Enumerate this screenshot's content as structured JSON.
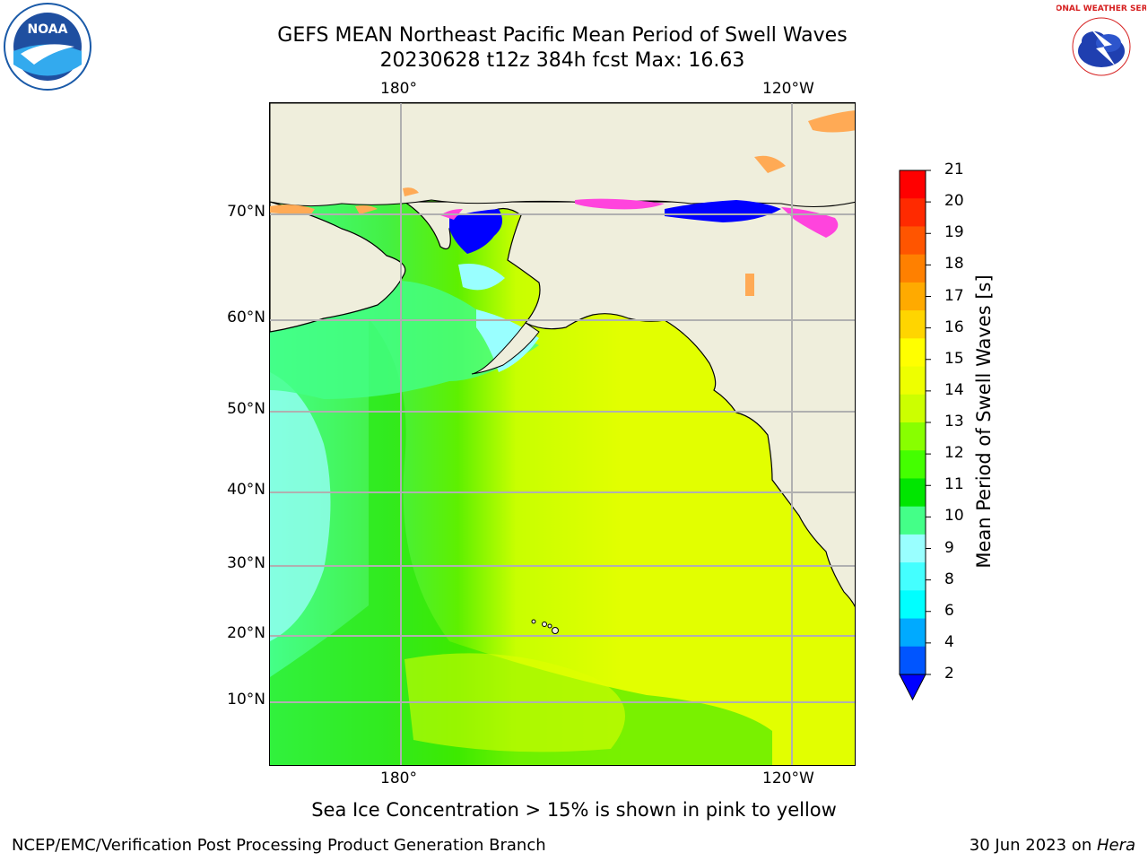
{
  "title": {
    "line1": "GEFS MEAN Northeast Pacific Mean Period of Swell Waves",
    "line2": "20230628 t12z 384h fcst   Max: 16.63"
  },
  "axes": {
    "lon_top": [
      "180°",
      "120°W"
    ],
    "lon_bottom": [
      "180°",
      "120°W"
    ],
    "lat": [
      "70°N",
      "60°N",
      "50°N",
      "40°N",
      "30°N",
      "20°N",
      "10°N"
    ]
  },
  "colorbar": {
    "label": "Mean Period of Swell Waves [s]",
    "ticks": [
      "21",
      "20",
      "19",
      "18",
      "17",
      "16",
      "15",
      "14",
      "13",
      "12",
      "11",
      "10",
      "9",
      "8",
      "6",
      "4",
      "2"
    ],
    "colors": [
      "#ff0000",
      "#ff2a00",
      "#ff5500",
      "#ff8000",
      "#ffaa00",
      "#ffd500",
      "#ffff00",
      "#eeff00",
      "#ccff00",
      "#88ff00",
      "#44ff00",
      "#00e600",
      "#44ff88",
      "#99ffff",
      "#44ffff",
      "#00ffff",
      "#00aaff",
      "#0055ff"
    ],
    "under_color": "#0000ff"
  },
  "colors": {
    "land": "#efeedc",
    "ocean_yellow": "#e2ff00",
    "ocean_green": "#5ef000",
    "ocean_green_dark": "#22e600",
    "ocean_cyan": "#99ffff",
    "ocean_mint": "#44ff88",
    "ice_blue": "#0000ff",
    "ice_magenta": "#ff44dd",
    "ice_orange": "#ffaa55"
  },
  "note": "Sea Ice Concentration > 15% is shown in pink to yellow",
  "footer": {
    "left": "NCEP/EMC/Verification Post Processing Product Generation Branch",
    "right_date": "30 Jun 2023 on ",
    "right_machine": "Hera"
  },
  "logos": {
    "noaa_text": "NOAA",
    "nws_text": "NATIONAL WEATHER SERVICE"
  }
}
